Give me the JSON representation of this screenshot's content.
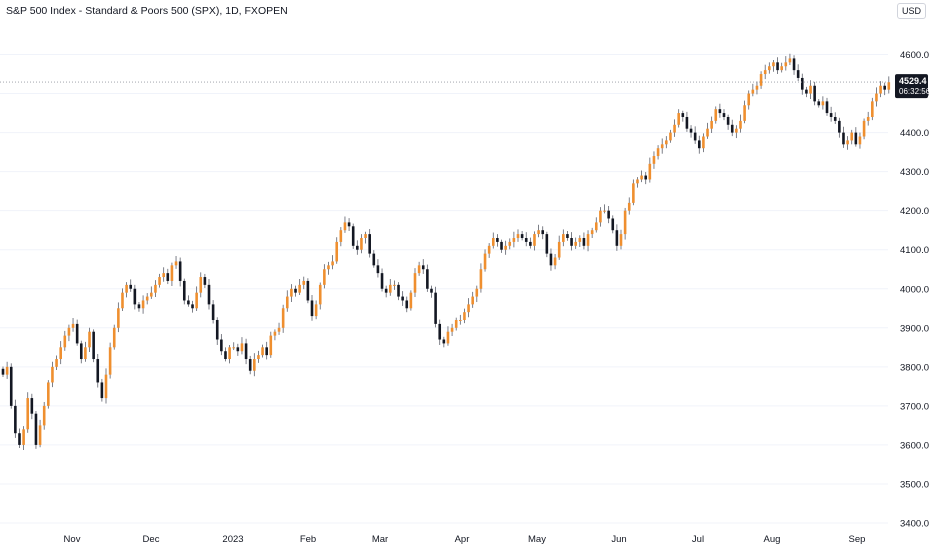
{
  "header": {
    "title": "S&P 500 Index - Standard & Poors 500 (SPX), 1D, FXOPEN",
    "currency": "USD"
  },
  "price_label": {
    "price": "4529.4",
    "countdown": "06:32:56"
  },
  "colors": {
    "up": "#ef8f2f",
    "down": "#131722",
    "wick": "#5d606b",
    "grid": "#f0f3fa",
    "axis_text": "#131722",
    "price_line": "#9598a1",
    "label_bg": "#131722",
    "label_text": "#ffffff"
  },
  "chart_data": {
    "type": "candlestick",
    "title": "S&P 500 Index - Standard & Poors 500 (SPX), 1D, FXOPEN",
    "xlabel": "",
    "ylabel": "",
    "ylim": [
      3400,
      4650
    ],
    "grid": true,
    "y_ticks": [
      "3400.0",
      "3500.0",
      "3600.0",
      "3700.0",
      "3800.0",
      "3900.0",
      "4000.0",
      "4100.0",
      "4200.0",
      "4300.0",
      "4400.0",
      "4500.0",
      "4600.0"
    ],
    "x_ticks": [
      "Nov",
      "Dec",
      "2023",
      "Feb",
      "Mar",
      "Apr",
      "May",
      "Jun",
      "Jul",
      "Aug",
      "Sep"
    ],
    "last_price": 4529.4,
    "series": [
      {
        "name": "SPX",
        "close": [
          3780,
          3800,
          3700,
          3630,
          3600,
          3640,
          3720,
          3680,
          3600,
          3650,
          3700,
          3760,
          3800,
          3820,
          3850,
          3880,
          3900,
          3910,
          3860,
          3820,
          3850,
          3890,
          3820,
          3760,
          3720,
          3780,
          3850,
          3900,
          3950,
          3990,
          4010,
          4000,
          3960,
          3950,
          3970,
          3980,
          3990,
          4010,
          4030,
          4040,
          4020,
          4060,
          4070,
          4020,
          3970,
          3960,
          3950,
          3990,
          4030,
          4010,
          3960,
          3920,
          3870,
          3840,
          3820,
          3850,
          3850,
          3840,
          3860,
          3820,
          3790,
          3820,
          3830,
          3850,
          3830,
          3880,
          3890,
          3900,
          3950,
          3980,
          4000,
          3990,
          4010,
          4020,
          3970,
          3930,
          3960,
          4010,
          4050,
          4060,
          4070,
          4120,
          4150,
          4170,
          4160,
          4110,
          4100,
          4130,
          4140,
          4090,
          4060,
          4040,
          4000,
          3990,
          4010,
          4010,
          3980,
          3970,
          3950,
          3990,
          4040,
          4060,
          4050,
          4000,
          3990,
          3910,
          3870,
          3860,
          3890,
          3900,
          3920,
          3920,
          3940,
          3960,
          3980,
          4000,
          4050,
          4090,
          4110,
          4130,
          4120,
          4100,
          4110,
          4120,
          4130,
          4140,
          4130,
          4120,
          4110,
          4140,
          4150,
          4140,
          4090,
          4060,
          4080,
          4120,
          4140,
          4130,
          4110,
          4120,
          4130,
          4110,
          4140,
          4150,
          4170,
          4200,
          4200,
          4180,
          4150,
          4110,
          4140,
          4200,
          4220,
          4270,
          4280,
          4290,
          4280,
          4320,
          4340,
          4360,
          4370,
          4380,
          4400,
          4420,
          4450,
          4440,
          4410,
          4400,
          4380,
          4360,
          4390,
          4410,
          4430,
          4460,
          4450,
          4440,
          4420,
          4400,
          4410,
          4430,
          4470,
          4500,
          4510,
          4520,
          4550,
          4560,
          4570,
          4580,
          4560,
          4570,
          4580,
          4590,
          4560,
          4540,
          4510,
          4500,
          4520,
          4480,
          4470,
          4480,
          4450,
          4440,
          4430,
          4400,
          4370,
          4380,
          4400,
          4370,
          4390,
          4430,
          4440,
          4480,
          4500,
          4520,
          4510,
          4529
        ]
      }
    ]
  }
}
